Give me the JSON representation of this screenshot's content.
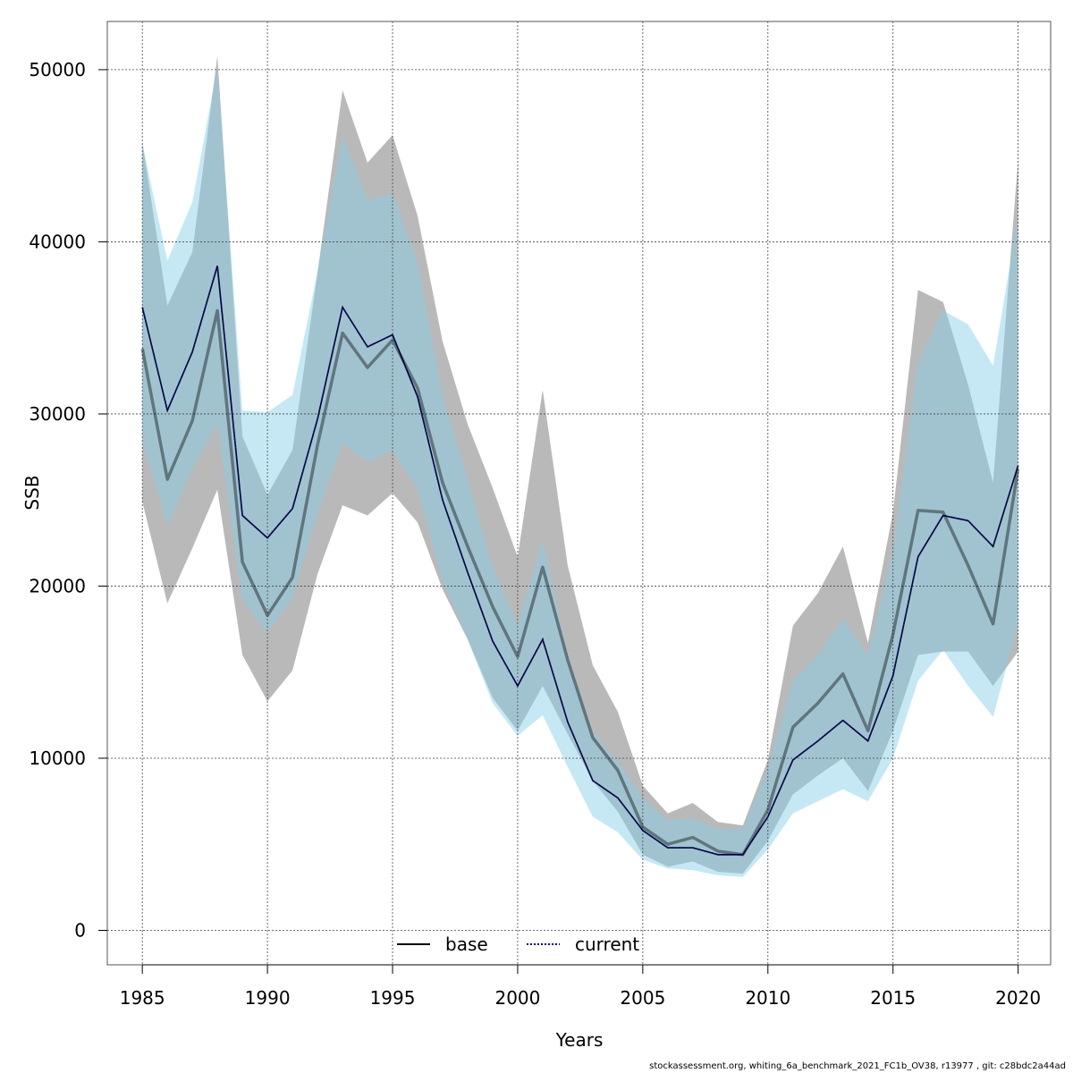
{
  "footer": "stockassessment.org, whiting_6a_benchmark_2021_FC1b_OV38, r13977 , git: c28bdc2a44ad",
  "chart_data": {
    "type": "line",
    "title": "",
    "xlabel": "Years",
    "ylabel": "SSB",
    "xlim": [
      1983.6,
      2021.3
    ],
    "ylim": [
      -2000,
      52800
    ],
    "xticks": [
      1985,
      1990,
      1995,
      2000,
      2005,
      2010,
      2015,
      2020
    ],
    "yticks": [
      0,
      10000,
      20000,
      30000,
      40000,
      50000
    ],
    "grid": true,
    "legend_position": "bottom",
    "colors": {
      "base_line": "#000000",
      "base_band": "#808080",
      "current_line": "#000080",
      "current_band": "#87CEEB"
    },
    "x": [
      1985,
      1986,
      1987,
      1988,
      1989,
      1990,
      1991,
      1992,
      1993,
      1994,
      1995,
      1996,
      1997,
      1998,
      1999,
      2000,
      2001,
      2002,
      2003,
      2004,
      2005,
      2006,
      2007,
      2008,
      2009,
      2010,
      2011,
      2012,
      2013,
      2014,
      2015,
      2016,
      2017,
      2018,
      2019,
      2020
    ],
    "series": [
      {
        "name": "base",
        "style": "solid",
        "values": [
          33800,
          26200,
          29600,
          36000,
          21400,
          18300,
          20500,
          28200,
          34700,
          32700,
          34300,
          31500,
          26000,
          22300,
          18800,
          15900,
          21100,
          15700,
          11200,
          9300,
          6000,
          5000,
          5400,
          4600,
          4400,
          7000,
          11800,
          13200,
          14900,
          11600,
          17200,
          24400,
          24300,
          21200,
          17800,
          26800
        ],
        "lower": [
          24900,
          19000,
          22200,
          25600,
          16000,
          13300,
          15100,
          20700,
          24700,
          24100,
          25400,
          23700,
          19800,
          16900,
          13500,
          11600,
          14200,
          11400,
          8700,
          6900,
          4400,
          3700,
          4000,
          3400,
          3300,
          5200,
          7900,
          9000,
          10000,
          8100,
          11600,
          16000,
          16200,
          16200,
          14200,
          16200
        ],
        "upper": [
          45800,
          36300,
          39400,
          50800,
          28700,
          25300,
          27900,
          38200,
          48800,
          44600,
          46200,
          41500,
          34200,
          29400,
          25700,
          21700,
          31400,
          21200,
          15400,
          12700,
          8400,
          6800,
          7400,
          6300,
          6100,
          9900,
          17700,
          19600,
          22300,
          16700,
          24300,
          37200,
          36500,
          31700,
          26000,
          44800
        ]
      },
      {
        "name": "current",
        "style": "dotted",
        "values": [
          36200,
          30200,
          33600,
          38600,
          24100,
          22800,
          24500,
          29700,
          36200,
          33900,
          34600,
          31000,
          25000,
          20800,
          16800,
          14200,
          16900,
          12100,
          8700,
          7700,
          5800,
          4800,
          4800,
          4400,
          4400,
          6600,
          9900,
          11000,
          12200,
          11000,
          14800,
          21700,
          24100,
          23800,
          22300,
          27000
        ],
        "lower": [
          28400,
          23500,
          26800,
          29500,
          19200,
          17300,
          19300,
          24200,
          28300,
          27200,
          27900,
          25600,
          20300,
          16900,
          13200,
          11300,
          12500,
          9500,
          6600,
          5700,
          4100,
          3600,
          3500,
          3200,
          3100,
          4700,
          6800,
          7500,
          8200,
          7500,
          10000,
          14500,
          16300,
          14200,
          12400,
          17800
        ],
        "upper": [
          45700,
          38900,
          42300,
          50200,
          30200,
          30100,
          31100,
          38300,
          46200,
          42400,
          42800,
          38800,
          31000,
          26200,
          21100,
          17700,
          22700,
          16000,
          11500,
          9800,
          7700,
          6400,
          6500,
          5900,
          5900,
          9400,
          14500,
          16000,
          18100,
          16000,
          22000,
          33000,
          36000,
          35200,
          32800,
          41500
        ]
      }
    ]
  }
}
